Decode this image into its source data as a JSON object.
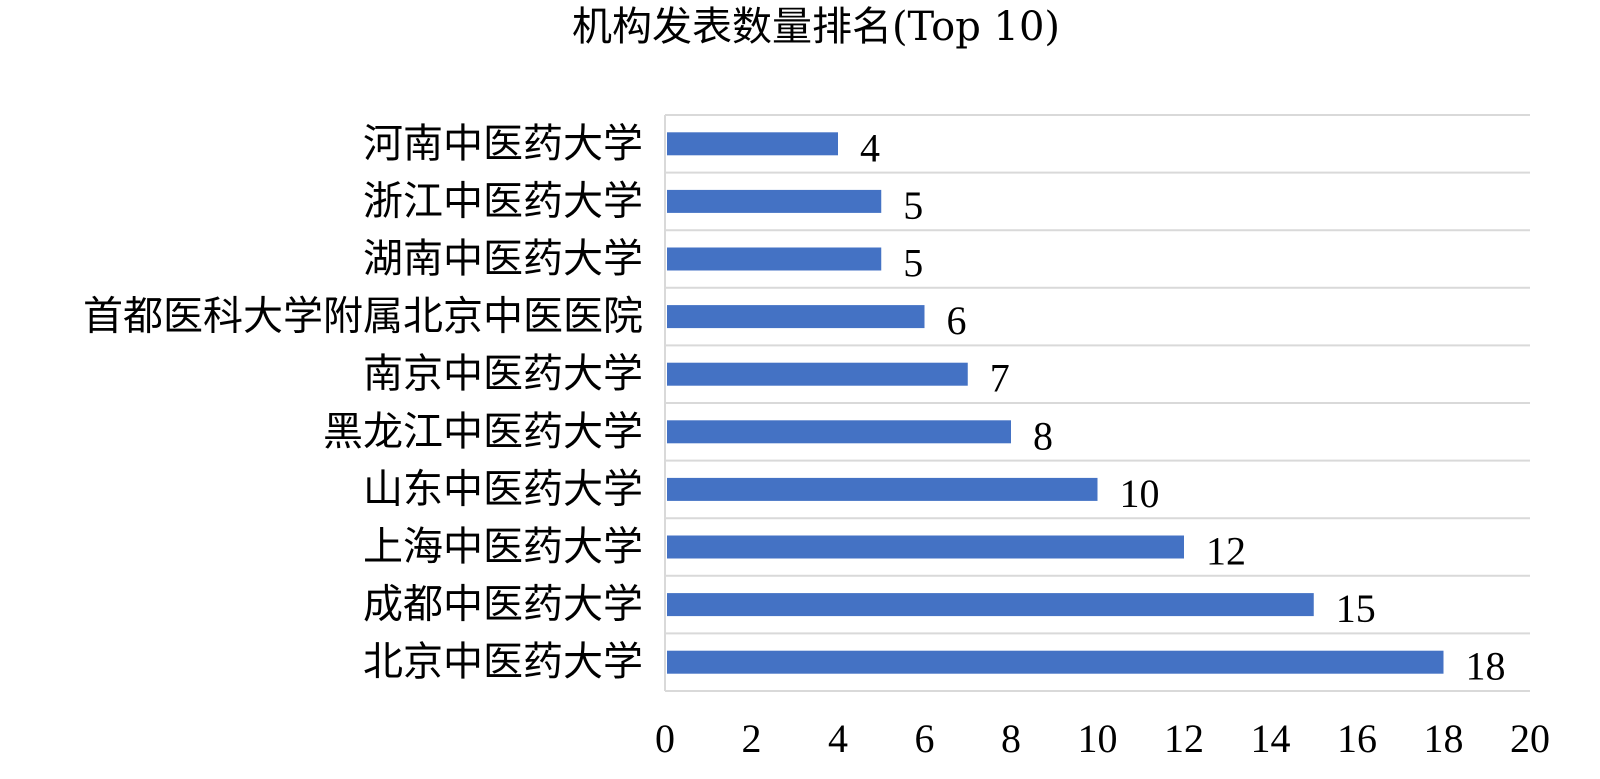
{
  "chart_data": {
    "type": "bar",
    "orientation": "horizontal",
    "title": "机构发表数量排名(Top 10)",
    "xlabel": "",
    "ylabel": "",
    "categories": [
      "河南中医药大学",
      "浙江中医药大学",
      "湖南中医药大学",
      "首都医科大学附属北京中医医院",
      "南京中医药大学",
      "黑龙江中医药大学",
      "山东中医药大学",
      "上海中医药大学",
      "成都中医药大学",
      "北京中医药大学"
    ],
    "values": [
      4,
      5,
      5,
      6,
      7,
      8,
      10,
      12,
      15,
      18
    ],
    "xlim": [
      0,
      20
    ],
    "x_ticks": [
      "0",
      "2",
      "4",
      "6",
      "8",
      "10",
      "12",
      "14",
      "16",
      "18",
      "20"
    ],
    "grid": true,
    "data_labels": true,
    "bar_color": "#4472C4",
    "grid_color": "#D9D9D9"
  }
}
